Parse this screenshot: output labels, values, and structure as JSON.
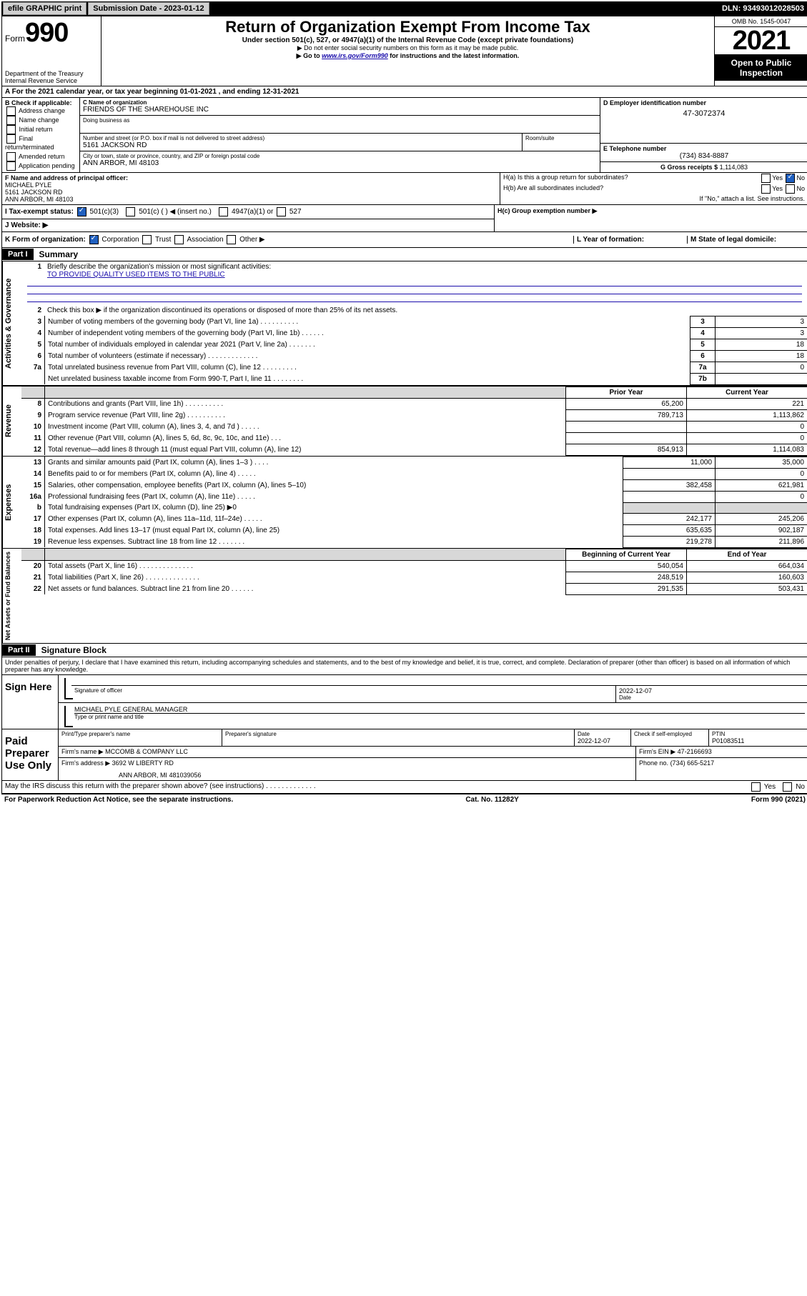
{
  "topbar": {
    "efile": "efile GRAPHIC print",
    "submission_label": "Submission Date - 2023-01-12",
    "dln": "DLN: 93493012028503"
  },
  "header": {
    "form_prefix": "Form",
    "form_number": "990",
    "title": "Return of Organization Exempt From Income Tax",
    "subtitle": "Under section 501(c), 527, or 4947(a)(1) of the Internal Revenue Code (except private foundations)",
    "note1": "▶ Do not enter social security numbers on this form as it may be made public.",
    "note2_pre": "▶ Go to ",
    "note2_link": "www.irs.gov/Form990",
    "note2_post": " for instructions and the latest information.",
    "dept": "Department of the Treasury",
    "irs": "Internal Revenue Service",
    "omb": "OMB No. 1545-0047",
    "year": "2021",
    "open": "Open to Public Inspection"
  },
  "rowA": "A For the 2021 calendar year, or tax year beginning 01-01-2021    , and ending 12-31-2021",
  "colB": {
    "label": "B Check if applicable:",
    "opts": [
      "Address change",
      "Name change",
      "Initial return",
      "Final return/terminated",
      "Amended return",
      "Application pending"
    ]
  },
  "boxC": {
    "label": "C Name of organization",
    "val": "FRIENDS OF THE SHAREHOUSE INC",
    "dba_label": "Doing business as",
    "addr_label": "Number and street (or P.O. box if mail is not delivered to street address)",
    "addr": "5161 JACKSON RD",
    "room_label": "Room/suite",
    "city_label": "City or town, state or province, country, and ZIP or foreign postal code",
    "city": "ANN ARBOR, MI  48103"
  },
  "boxD": {
    "label": "D Employer identification number",
    "val": "47-3072374"
  },
  "boxE": {
    "label": "E Telephone number",
    "val": "(734) 834-8887"
  },
  "boxG": {
    "label": "G Gross receipts $",
    "val": "1,114,083"
  },
  "boxF": {
    "label": "F Name and address of principal officer:",
    "name": "MICHAEL PYLE",
    "addr1": "5161 JACKSON RD",
    "addr2": "ANN ARBOR, MI  48103"
  },
  "boxH": {
    "ha_label": "H(a)  Is this a group return for subordinates?",
    "hb_label": "H(b)  Are all subordinates included?",
    "hb_note": "If \"No,\" attach a list. See instructions.",
    "hc_label": "H(c)  Group exemption number ▶",
    "yes": "Yes",
    "no": "No"
  },
  "rowI": {
    "label": "I   Tax-exempt status:",
    "opt1": "501(c)(3)",
    "opt2": "501(c) (   ) ◀ (insert no.)",
    "opt3": "4947(a)(1) or",
    "opt4": "527"
  },
  "rowJ": {
    "label": "J   Website: ▶"
  },
  "rowK": {
    "label": "K Form of organization:",
    "opts": [
      "Corporation",
      "Trust",
      "Association",
      "Other ▶"
    ],
    "l_label": "L Year of formation:",
    "m_label": "M State of legal domicile:"
  },
  "partI": {
    "tag": "Part I",
    "title": "Summary",
    "l1": "Briefly describe the organization's mission or most significant activities:",
    "l1_val": "TO PROVIDE QUALITY USED ITEMS TO THE PUBLIC",
    "l2": "Check this box ▶       if the organization discontinued its operations or disposed of more than 25% of its net assets.",
    "rows_top": [
      {
        "n": "3",
        "t": "Number of voting members of the governing body (Part VI, line 1a)   .    .    .    .    .    .    .    .    .    .",
        "b": "3",
        "v": "3"
      },
      {
        "n": "4",
        "t": "Number of independent voting members of the governing body (Part VI, line 1b)   .    .    .    .    .    .",
        "b": "4",
        "v": "3"
      },
      {
        "n": "5",
        "t": "Total number of individuals employed in calendar year 2021 (Part V, line 2a)   .    .    .    .    .    .    .",
        "b": "5",
        "v": "18"
      },
      {
        "n": "6",
        "t": "Total number of volunteers (estimate if necessary)   .    .    .    .    .    .    .    .    .    .    .    .    .",
        "b": "6",
        "v": "18"
      },
      {
        "n": "7a",
        "t": "Total unrelated business revenue from Part VIII, column (C), line 12   .    .    .    .    .    .    .    .    .",
        "b": "7a",
        "v": "0"
      },
      {
        "n": "",
        "t": "Net unrelated business taxable income from Form 990-T, Part I, line 11   .    .    .    .    .    .    .    .",
        "b": "7b",
        "v": ""
      }
    ],
    "col_prior": "Prior Year",
    "col_current": "Current Year",
    "rows_rev": [
      {
        "n": "8",
        "t": "Contributions and grants (Part VIII, line 1h)   .    .    .    .    .    .    .    .    .    .",
        "p": "65,200",
        "c": "221"
      },
      {
        "n": "9",
        "t": "Program service revenue (Part VIII, line 2g)   .    .    .    .    .    .    .    .    .    .",
        "p": "789,713",
        "c": "1,113,862"
      },
      {
        "n": "10",
        "t": "Investment income (Part VIII, column (A), lines 3, 4, and 7d )   .    .    .    .    .",
        "p": "",
        "c": "0"
      },
      {
        "n": "11",
        "t": "Other revenue (Part VIII, column (A), lines 5, 6d, 8c, 9c, 10c, and 11e)   .    .    .",
        "p": "",
        "c": "0"
      },
      {
        "n": "12",
        "t": "Total revenue—add lines 8 through 11 (must equal Part VIII, column (A), line 12)",
        "p": "854,913",
        "c": "1,114,083"
      }
    ],
    "rows_exp": [
      {
        "n": "13",
        "t": "Grants and similar amounts paid (Part IX, column (A), lines 1–3 )   .    .    .    .",
        "p": "11,000",
        "c": "35,000"
      },
      {
        "n": "14",
        "t": "Benefits paid to or for members (Part IX, column (A), line 4)   .    .    .    .    .",
        "p": "",
        "c": "0"
      },
      {
        "n": "15",
        "t": "Salaries, other compensation, employee benefits (Part IX, column (A), lines 5–10)",
        "p": "382,458",
        "c": "621,981"
      },
      {
        "n": "16a",
        "t": "Professional fundraising fees (Part IX, column (A), line 11e)   .    .    .    .    .",
        "p": "",
        "c": "0"
      },
      {
        "n": "b",
        "t": "Total fundraising expenses (Part IX, column (D), line 25) ▶0",
        "p": "__SHADE__",
        "c": "__SHADE__"
      },
      {
        "n": "17",
        "t": "Other expenses (Part IX, column (A), lines 11a–11d, 11f–24e)   .    .    .    .    .",
        "p": "242,177",
        "c": "245,206"
      },
      {
        "n": "18",
        "t": "Total expenses. Add lines 13–17 (must equal Part IX, column (A), line 25)",
        "p": "635,635",
        "c": "902,187"
      },
      {
        "n": "19",
        "t": "Revenue less expenses. Subtract line 18 from line 12   .    .    .    .    .    .    .",
        "p": "219,278",
        "c": "211,896"
      }
    ],
    "col_begin": "Beginning of Current Year",
    "col_end": "End of Year",
    "rows_net": [
      {
        "n": "20",
        "t": "Total assets (Part X, line 16)   .    .    .    .    .    .    .    .    .    .    .    .    .    .",
        "p": "540,054",
        "c": "664,034"
      },
      {
        "n": "21",
        "t": "Total liabilities (Part X, line 26)   .    .    .    .    .    .    .    .    .    .    .    .    .    .",
        "p": "248,519",
        "c": "160,603"
      },
      {
        "n": "22",
        "t": "Net assets or fund balances. Subtract line 21 from line 20   .    .    .    .    .    .",
        "p": "291,535",
        "c": "503,431"
      }
    ],
    "side_gov": "Activities & Governance",
    "side_rev": "Revenue",
    "side_exp": "Expenses",
    "side_net": "Net Assets or Fund Balances"
  },
  "partII": {
    "tag": "Part II",
    "title": "Signature Block",
    "decl": "Under penalties of perjury, I declare that I have examined this return, including accompanying schedules and statements, and to the best of my knowledge and belief, it is true, correct, and complete. Declaration of preparer (other than officer) is based on all information of which preparer has any knowledge.",
    "sign_here": "Sign Here",
    "sig_officer": "Signature of officer",
    "date": "Date",
    "date_val": "2022-12-07",
    "name_title": "MICHAEL PYLE  GENERAL MANAGER",
    "type_name": "Type or print name and title",
    "paid": "Paid Preparer Use Only",
    "prep_name_label": "Print/Type preparer's name",
    "prep_sig_label": "Preparer's signature",
    "prep_date_label": "Date",
    "prep_date": "2022-12-07",
    "check_if": "Check       if self-employed",
    "ptin_label": "PTIN",
    "ptin": "P01083511",
    "firm_name_label": "Firm's name    ▶",
    "firm_name": "MCCOMB & COMPANY LLC",
    "firm_ein_label": "Firm's EIN ▶",
    "firm_ein": "47-2166693",
    "firm_addr_label": "Firm's address ▶",
    "firm_addr1": "3692 W LIBERTY RD",
    "firm_addr2": "ANN ARBOR, MI  481039056",
    "phone_label": "Phone no.",
    "phone": "(734) 665-5217",
    "may_irs": "May the IRS discuss this return with the preparer shown above? (see instructions)   .    .    .    .    .    .    .    .    .    .    .    .    .",
    "yes": "Yes",
    "no": "No"
  },
  "footer": {
    "left": "For Paperwork Reduction Act Notice, see the separate instructions.",
    "mid": "Cat. No. 11282Y",
    "right": "Form 990 (2021)"
  }
}
